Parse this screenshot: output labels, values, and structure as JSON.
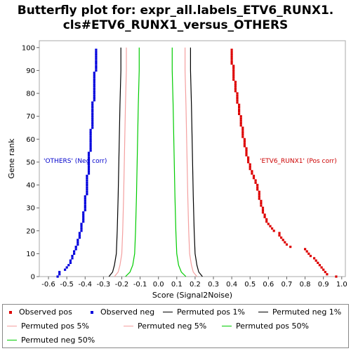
{
  "chart_data": {
    "type": "scatter",
    "title_line1": "Butterfly plot for: expr_all.labels_ETV6_RUNX1.",
    "title_line2": "cls#ETV6_RUNX1_versus_OTHERS",
    "xlabel": "Score (Signal2Noise)",
    "ylabel": "Gene rank",
    "xlim": [
      -0.65,
      1.02
    ],
    "ylim": [
      0,
      103
    ],
    "xticks": [
      "-0.6",
      "-0.5",
      "-0.4",
      "-0.3",
      "-0.2",
      "-0.1",
      "0.0",
      "0.1",
      "0.2",
      "0.3",
      "0.4",
      "0.5",
      "0.6",
      "0.7",
      "0.8",
      "0.9",
      "1.0"
    ],
    "xtick_values": [
      -0.6,
      -0.5,
      -0.4,
      -0.3,
      -0.2,
      -0.1,
      0.0,
      0.1,
      0.2,
      0.3,
      0.4,
      0.5,
      0.6,
      0.7,
      0.8,
      0.9,
      1.0
    ],
    "yticks": [
      "0",
      "10",
      "20",
      "30",
      "40",
      "50",
      "60",
      "70",
      "80",
      "90",
      "100"
    ],
    "ytick_values": [
      0,
      10,
      20,
      30,
      40,
      50,
      60,
      70,
      80,
      90,
      100
    ],
    "annotations": {
      "neg": "'OTHERS' (Neg corr)",
      "pos": "'ETV6_RUNX1' (Pos corr)"
    },
    "series": [
      {
        "name": "Observed pos",
        "kind": "points",
        "color": "#dd0000",
        "points": [
          [
            0.97,
            0
          ],
          [
            0.92,
            1
          ],
          [
            0.91,
            2
          ],
          [
            0.9,
            3
          ],
          [
            0.89,
            4
          ],
          [
            0.88,
            5
          ],
          [
            0.87,
            6
          ],
          [
            0.86,
            7
          ],
          [
            0.85,
            8
          ],
          [
            0.83,
            9
          ],
          [
            0.82,
            10
          ],
          [
            0.81,
            11
          ],
          [
            0.8,
            12
          ],
          [
            0.72,
            13
          ],
          [
            0.7,
            14
          ],
          [
            0.69,
            15
          ],
          [
            0.68,
            16
          ],
          [
            0.67,
            17
          ],
          [
            0.66,
            18
          ],
          [
            0.66,
            19
          ],
          [
            0.63,
            20
          ],
          [
            0.62,
            21
          ],
          [
            0.61,
            22
          ],
          [
            0.6,
            23
          ],
          [
            0.59,
            24
          ],
          [
            0.59,
            25
          ],
          [
            0.58,
            26
          ],
          [
            0.58,
            27
          ],
          [
            0.57,
            28
          ],
          [
            0.57,
            29
          ],
          [
            0.57,
            30
          ],
          [
            0.56,
            31
          ],
          [
            0.56,
            32
          ],
          [
            0.56,
            33
          ],
          [
            0.55,
            34
          ],
          [
            0.55,
            35
          ],
          [
            0.55,
            36
          ],
          [
            0.55,
            37
          ],
          [
            0.54,
            38
          ],
          [
            0.54,
            39
          ],
          [
            0.54,
            40
          ],
          [
            0.53,
            41
          ],
          [
            0.53,
            42
          ],
          [
            0.52,
            43
          ],
          [
            0.52,
            44
          ],
          [
            0.51,
            45
          ],
          [
            0.51,
            46
          ],
          [
            0.5,
            47
          ],
          [
            0.5,
            48
          ],
          [
            0.5,
            49
          ],
          [
            0.49,
            50
          ],
          [
            0.49,
            51
          ],
          [
            0.49,
            52
          ],
          [
            0.48,
            53
          ],
          [
            0.48,
            54
          ],
          [
            0.48,
            55
          ],
          [
            0.48,
            56
          ],
          [
            0.47,
            57
          ],
          [
            0.47,
            58
          ],
          [
            0.47,
            59
          ],
          [
            0.47,
            60
          ],
          [
            0.46,
            61
          ],
          [
            0.46,
            62
          ],
          [
            0.46,
            63
          ],
          [
            0.46,
            64
          ],
          [
            0.46,
            65
          ],
          [
            0.45,
            66
          ],
          [
            0.45,
            67
          ],
          [
            0.45,
            68
          ],
          [
            0.45,
            69
          ],
          [
            0.45,
            70
          ],
          [
            0.44,
            71
          ],
          [
            0.44,
            72
          ],
          [
            0.44,
            73
          ],
          [
            0.44,
            74
          ],
          [
            0.44,
            75
          ],
          [
            0.43,
            76
          ],
          [
            0.43,
            77
          ],
          [
            0.43,
            78
          ],
          [
            0.43,
            79
          ],
          [
            0.43,
            80
          ],
          [
            0.42,
            81
          ],
          [
            0.42,
            82
          ],
          [
            0.42,
            83
          ],
          [
            0.42,
            84
          ],
          [
            0.42,
            85
          ],
          [
            0.41,
            86
          ],
          [
            0.41,
            87
          ],
          [
            0.41,
            88
          ],
          [
            0.41,
            89
          ],
          [
            0.41,
            90
          ],
          [
            0.41,
            91
          ],
          [
            0.41,
            92
          ],
          [
            0.4,
            93
          ],
          [
            0.4,
            94
          ],
          [
            0.4,
            95
          ],
          [
            0.4,
            96
          ],
          [
            0.4,
            97
          ],
          [
            0.4,
            98
          ],
          [
            0.4,
            99
          ]
        ]
      },
      {
        "name": "Observed neg",
        "kind": "points",
        "color": "#0000dd",
        "points": [
          [
            -0.55,
            0
          ],
          [
            -0.54,
            1
          ],
          [
            -0.54,
            2
          ],
          [
            -0.51,
            3
          ],
          [
            -0.5,
            4
          ],
          [
            -0.49,
            5
          ],
          [
            -0.48,
            6
          ],
          [
            -0.48,
            7
          ],
          [
            -0.47,
            8
          ],
          [
            -0.47,
            9
          ],
          [
            -0.46,
            10
          ],
          [
            -0.46,
            11
          ],
          [
            -0.45,
            12
          ],
          [
            -0.45,
            13
          ],
          [
            -0.44,
            14
          ],
          [
            -0.44,
            15
          ],
          [
            -0.44,
            16
          ],
          [
            -0.43,
            17
          ],
          [
            -0.43,
            18
          ],
          [
            -0.43,
            19
          ],
          [
            -0.42,
            20
          ],
          [
            -0.42,
            21
          ],
          [
            -0.42,
            22
          ],
          [
            -0.42,
            23
          ],
          [
            -0.41,
            24
          ],
          [
            -0.41,
            25
          ],
          [
            -0.41,
            26
          ],
          [
            -0.41,
            27
          ],
          [
            -0.41,
            28
          ],
          [
            -0.4,
            29
          ],
          [
            -0.4,
            30
          ],
          [
            -0.4,
            31
          ],
          [
            -0.4,
            32
          ],
          [
            -0.4,
            33
          ],
          [
            -0.4,
            34
          ],
          [
            -0.4,
            35
          ],
          [
            -0.39,
            36
          ],
          [
            -0.39,
            37
          ],
          [
            -0.39,
            38
          ],
          [
            -0.39,
            39
          ],
          [
            -0.39,
            40
          ],
          [
            -0.39,
            41
          ],
          [
            -0.39,
            42
          ],
          [
            -0.39,
            43
          ],
          [
            -0.39,
            44
          ],
          [
            -0.38,
            45
          ],
          [
            -0.38,
            46
          ],
          [
            -0.38,
            47
          ],
          [
            -0.38,
            48
          ],
          [
            -0.38,
            49
          ],
          [
            -0.38,
            50
          ],
          [
            -0.38,
            51
          ],
          [
            -0.38,
            52
          ],
          [
            -0.38,
            53
          ],
          [
            -0.38,
            54
          ],
          [
            -0.37,
            55
          ],
          [
            -0.37,
            56
          ],
          [
            -0.37,
            57
          ],
          [
            -0.37,
            58
          ],
          [
            -0.37,
            59
          ],
          [
            -0.37,
            60
          ],
          [
            -0.37,
            61
          ],
          [
            -0.37,
            62
          ],
          [
            -0.37,
            63
          ],
          [
            -0.37,
            64
          ],
          [
            -0.36,
            65
          ],
          [
            -0.36,
            66
          ],
          [
            -0.36,
            67
          ],
          [
            -0.36,
            68
          ],
          [
            -0.36,
            69
          ],
          [
            -0.36,
            70
          ],
          [
            -0.36,
            71
          ],
          [
            -0.36,
            72
          ],
          [
            -0.36,
            73
          ],
          [
            -0.36,
            74
          ],
          [
            -0.36,
            75
          ],
          [
            -0.36,
            76
          ],
          [
            -0.35,
            77
          ],
          [
            -0.35,
            78
          ],
          [
            -0.35,
            79
          ],
          [
            -0.35,
            80
          ],
          [
            -0.35,
            81
          ],
          [
            -0.35,
            82
          ],
          [
            -0.35,
            83
          ],
          [
            -0.35,
            84
          ],
          [
            -0.35,
            85
          ],
          [
            -0.35,
            86
          ],
          [
            -0.35,
            87
          ],
          [
            -0.35,
            88
          ],
          [
            -0.35,
            89
          ],
          [
            -0.34,
            90
          ],
          [
            -0.34,
            91
          ],
          [
            -0.34,
            92
          ],
          [
            -0.34,
            93
          ],
          [
            -0.34,
            94
          ],
          [
            -0.34,
            95
          ],
          [
            -0.34,
            96
          ],
          [
            -0.34,
            97
          ],
          [
            -0.34,
            98
          ],
          [
            -0.34,
            99
          ]
        ]
      },
      {
        "name": "Permuted pos 1%",
        "kind": "line",
        "color": "#000000",
        "points": [
          [
            0.24,
            0
          ],
          [
            0.22,
            2
          ],
          [
            0.21,
            5
          ],
          [
            0.2,
            10
          ],
          [
            0.195,
            20
          ],
          [
            0.19,
            35
          ],
          [
            0.185,
            55
          ],
          [
            0.18,
            75
          ],
          [
            0.175,
            90
          ],
          [
            0.175,
            100
          ]
        ]
      },
      {
        "name": "Permuted neg 1%",
        "kind": "line",
        "color": "#000000",
        "points": [
          [
            -0.27,
            0
          ],
          [
            -0.25,
            2
          ],
          [
            -0.24,
            5
          ],
          [
            -0.23,
            10
          ],
          [
            -0.225,
            20
          ],
          [
            -0.22,
            35
          ],
          [
            -0.215,
            55
          ],
          [
            -0.21,
            75
          ],
          [
            -0.205,
            90
          ],
          [
            -0.205,
            100
          ]
        ]
      },
      {
        "name": "Permuted pos 5%",
        "kind": "line",
        "color": "#f4a0a0",
        "points": [
          [
            0.21,
            0
          ],
          [
            0.19,
            2
          ],
          [
            0.18,
            5
          ],
          [
            0.17,
            10
          ],
          [
            0.165,
            20
          ],
          [
            0.16,
            35
          ],
          [
            0.155,
            55
          ],
          [
            0.15,
            75
          ],
          [
            0.145,
            90
          ],
          [
            0.145,
            100
          ]
        ]
      },
      {
        "name": "Permuted neg 5%",
        "kind": "line",
        "color": "#f4a0a0",
        "points": [
          [
            -0.24,
            0
          ],
          [
            -0.22,
            2
          ],
          [
            -0.21,
            5
          ],
          [
            -0.2,
            10
          ],
          [
            -0.195,
            20
          ],
          [
            -0.19,
            35
          ],
          [
            -0.185,
            55
          ],
          [
            -0.18,
            75
          ],
          [
            -0.175,
            90
          ],
          [
            -0.175,
            100
          ]
        ]
      },
      {
        "name": "Permuted pos 50%",
        "kind": "line",
        "color": "#00cc00",
        "points": [
          [
            0.15,
            0
          ],
          [
            0.125,
            2
          ],
          [
            0.11,
            5
          ],
          [
            0.1,
            10
          ],
          [
            0.095,
            20
          ],
          [
            0.09,
            35
          ],
          [
            0.085,
            55
          ],
          [
            0.08,
            75
          ],
          [
            0.075,
            90
          ],
          [
            0.075,
            100
          ]
        ]
      },
      {
        "name": "Permuted neg 50%",
        "kind": "line",
        "color": "#00cc00",
        "points": [
          [
            -0.18,
            0
          ],
          [
            -0.155,
            2
          ],
          [
            -0.14,
            5
          ],
          [
            -0.13,
            10
          ],
          [
            -0.125,
            20
          ],
          [
            -0.12,
            35
          ],
          [
            -0.115,
            55
          ],
          [
            -0.11,
            75
          ],
          [
            -0.105,
            90
          ],
          [
            -0.105,
            100
          ]
        ]
      }
    ]
  },
  "legend": [
    {
      "label": "Observed pos",
      "color": "#dd0000",
      "kind": "dot"
    },
    {
      "label": "Observed neg",
      "color": "#0000dd",
      "kind": "dot"
    },
    {
      "label": "Permuted pos 1%",
      "color": "#000000",
      "kind": "line"
    },
    {
      "label": "Permuted neg 1%",
      "color": "#000000",
      "kind": "line"
    },
    {
      "label": "Permuted pos 5%",
      "color": "#f4a0a0",
      "kind": "line"
    },
    {
      "label": "Permuted neg 5%",
      "color": "#f4a0a0",
      "kind": "line"
    },
    {
      "label": "Permuted pos 50%",
      "color": "#00cc00",
      "kind": "line"
    },
    {
      "label": "Permuted neg 50%",
      "color": "#00cc00",
      "kind": "line"
    }
  ]
}
